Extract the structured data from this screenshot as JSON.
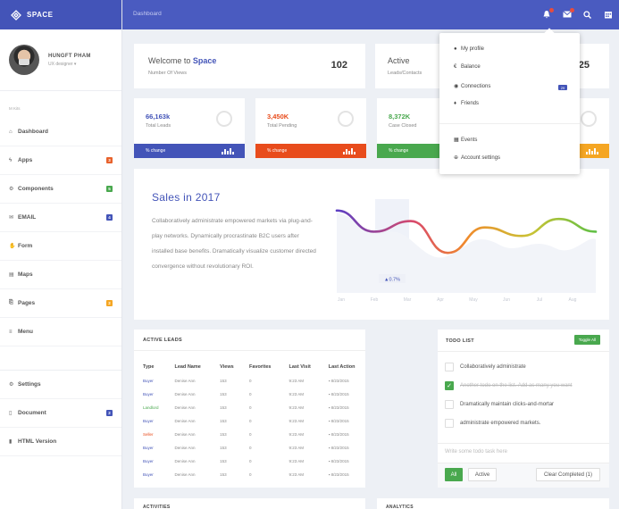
{
  "brand": {
    "name": "SPACE"
  },
  "profile": {
    "name": "HUNGFT PHAM",
    "role": "UX designer ▾"
  },
  "sidebar": {
    "section_label": "M Kits",
    "items": [
      {
        "label": "Dashboard",
        "icon": "home-icon"
      },
      {
        "label": "Apps",
        "icon": "bolt-icon",
        "badge": "3",
        "badge_color": "#e8622c"
      },
      {
        "label": "Components",
        "icon": "cog-icon",
        "badge": "5",
        "badge_color": "#49a84e"
      },
      {
        "label": "EMAIL",
        "icon": "envelope-icon",
        "badge": "4",
        "badge_color": "#4354b8"
      },
      {
        "label": "Form",
        "icon": "hand-icon"
      },
      {
        "label": "Maps",
        "icon": "map-icon"
      },
      {
        "label": "Pages",
        "icon": "pages-icon",
        "badge": "2",
        "badge_color": "#f5a623"
      },
      {
        "label": "Menu",
        "icon": "menu-icon"
      }
    ],
    "bottom_items": [
      {
        "label": "Settings",
        "icon": "gear-icon"
      },
      {
        "label": "Document",
        "icon": "document-icon",
        "badge": "2",
        "badge_color": "#4354b8"
      },
      {
        "label": "HTML Version",
        "icon": "file-icon"
      }
    ]
  },
  "topbar": {
    "breadcrumb": "Dashboard"
  },
  "welcome": {
    "title_prefix": "Welcome to ",
    "title_brand": "Space",
    "subtitle": "Number Of Views",
    "value": "102"
  },
  "active": {
    "title": "Active",
    "subtitle": "Leads/Contacts",
    "value": "25"
  },
  "stats": [
    {
      "value": "66,163k",
      "label": "Total Leads",
      "footer": "% change",
      "color": "#4354b8"
    },
    {
      "value": "3,450K",
      "label": "Total Pending",
      "footer": "% change",
      "color": "#e84c1c"
    },
    {
      "value": "8,372K",
      "label": "Case Closed",
      "footer": "% change",
      "color": "#49a84e"
    },
    {
      "value": "",
      "label": "",
      "footer": "",
      "color": "#f5a623"
    }
  ],
  "sales": {
    "title": "Sales in 2017",
    "description": "Collaboratively administrate empowered markets via plug-and-play networks. Dynamically procrastinate B2C users after installed base benefits. Dramatically visualize customer directed convergence without revolutionary ROI.",
    "tooltip": "▲0.7%"
  },
  "chart_data": {
    "type": "line",
    "categories": [
      "Jan",
      "Feb",
      "Mar",
      "Apr",
      "May",
      "Jun",
      "Jul",
      "Aug"
    ],
    "series": [
      {
        "values": [
          60,
          50,
          55,
          40,
          52,
          48,
          56,
          50
        ]
      }
    ],
    "title": "Sales in 2017",
    "grid": false
  },
  "leads": {
    "title": "ACTIVE LEADS",
    "columns": [
      "Type",
      "Lead Name",
      "Views",
      "Favorites",
      "Last Visit",
      "Last Action"
    ],
    "rows": [
      {
        "type": "Buyer",
        "type_color": "#4354b8",
        "name": "Denise Ann",
        "views": "153",
        "fav": "0",
        "visit": "9:23 AM",
        "action": "8/23/2015"
      },
      {
        "type": "Buyer",
        "type_color": "#4354b8",
        "name": "Denise Ann",
        "views": "153",
        "fav": "0",
        "visit": "9:23 AM",
        "action": "8/23/2015"
      },
      {
        "type": "Landlord",
        "type_color": "#49a84e",
        "name": "Denise Ann",
        "views": "153",
        "fav": "0",
        "visit": "9:23 AM",
        "action": "8/23/2015"
      },
      {
        "type": "Buyer",
        "type_color": "#4354b8",
        "name": "Denise Ann",
        "views": "153",
        "fav": "0",
        "visit": "9:23 AM",
        "action": "8/23/2015"
      },
      {
        "type": "Seller",
        "type_color": "#e84c1c",
        "name": "Denise Ann",
        "views": "153",
        "fav": "0",
        "visit": "9:23 AM",
        "action": "8/23/2015"
      },
      {
        "type": "Buyer",
        "type_color": "#4354b8",
        "name": "Denise Ann",
        "views": "153",
        "fav": "0",
        "visit": "9:23 AM",
        "action": "8/23/2015"
      },
      {
        "type": "Buyer",
        "type_color": "#4354b8",
        "name": "Denise Ann",
        "views": "153",
        "fav": "0",
        "visit": "9:23 AM",
        "action": "8/23/2015"
      },
      {
        "type": "Buyer",
        "type_color": "#4354b8",
        "name": "Denise Ann",
        "views": "153",
        "fav": "0",
        "visit": "9:23 AM",
        "action": "8/23/2015"
      }
    ]
  },
  "todo": {
    "title": "TODO LIST",
    "toggle_label": "Toggle All",
    "items": [
      {
        "text": "Collaboratively administrate",
        "done": false
      },
      {
        "text": "Another todo on the list. Add as many you want",
        "done": true
      },
      {
        "text": "Dramatically maintain clicks-and-mortar",
        "done": false
      },
      {
        "text": "administrate empowered markets.",
        "done": false
      }
    ],
    "placeholder": "Write some todo task here",
    "filter_all": "All",
    "filter_active": "Active",
    "clear_label": "Clear Completed (1)"
  },
  "bottom": {
    "activities": "ACTIVITIES",
    "analytics": "ANALYTICS"
  },
  "dropdown": {
    "items": [
      {
        "label": "My profile",
        "icon": "user-icon"
      },
      {
        "label": "Balance",
        "icon": "euro-icon"
      },
      {
        "label": "Connections",
        "icon": "globe-icon",
        "badge": "29"
      },
      {
        "label": "Friends",
        "icon": "friend-icon"
      },
      {
        "label": "Events",
        "icon": "calendar-icon"
      },
      {
        "label": "Account settings",
        "icon": "settings-icon"
      }
    ]
  }
}
